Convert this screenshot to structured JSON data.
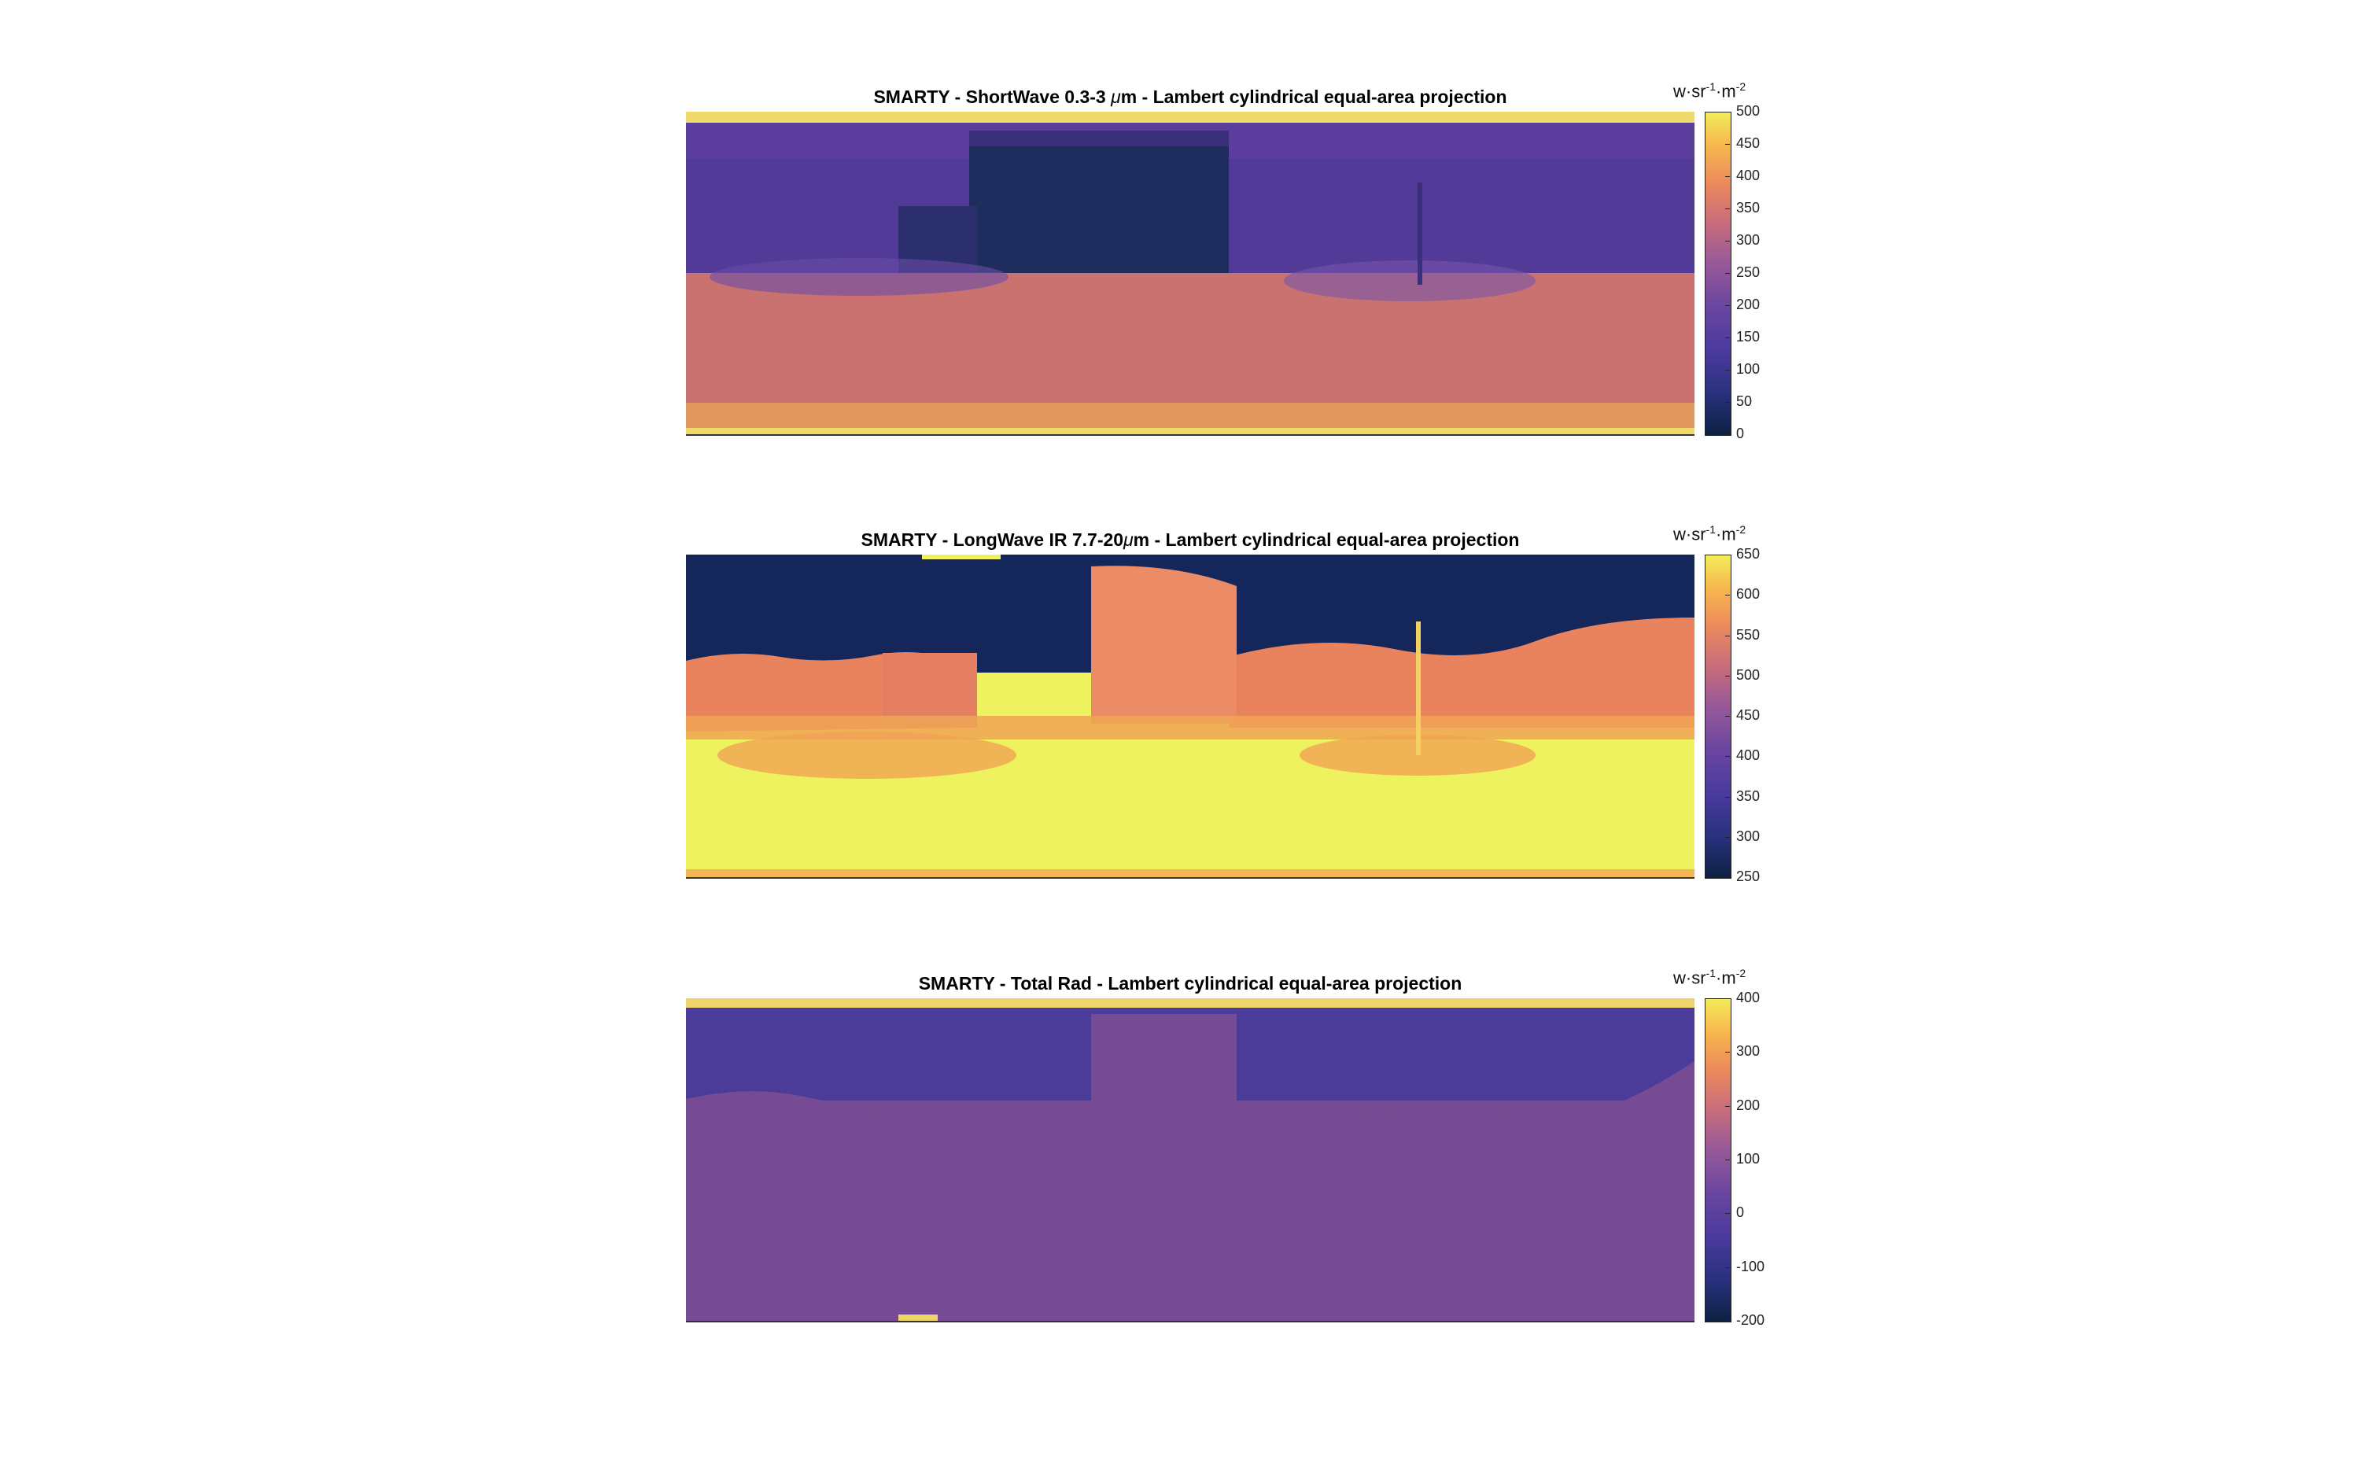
{
  "chart_data": [
    {
      "type": "heatmap",
      "title_pre": "SMARTY - ShortWave 0.3-3 ",
      "title_mu": "μ",
      "title_post": "m - Lambert cylindrical equal-area projection",
      "colorbar_ticks": [
        "500",
        "450",
        "400",
        "350",
        "300",
        "250",
        "200",
        "150",
        "100",
        "50",
        "0"
      ],
      "clim": [
        0,
        500
      ],
      "unit_base": "w·sr",
      "unit_exp1": "-1",
      "unit_mid": "·m",
      "unit_exp2": "-2",
      "colors": {
        "sky": "#5b3d9e",
        "sky_top": "#efd96a",
        "building": "#1f2d5e",
        "ground": "#c97270",
        "ground_bottom": "#e8a35c"
      }
    },
    {
      "type": "heatmap",
      "title_pre": "SMARTY - LongWave IR 7.7-20",
      "title_mu": "μ",
      "title_post": "m - Lambert cylindrical equal-area projection",
      "colorbar_ticks": [
        "650",
        "600",
        "550",
        "500",
        "450",
        "400",
        "350",
        "300",
        "250"
      ],
      "clim": [
        250,
        650
      ],
      "unit_base": "w·sr",
      "unit_exp1": "-1",
      "unit_mid": "·m",
      "unit_exp2": "-2",
      "colors": {
        "sky": "#15265a",
        "building": "#ec8c66",
        "trees": "#e8835e",
        "ground": "#eef25e",
        "ground_edge": "#f4b657"
      }
    },
    {
      "type": "heatmap",
      "title_pre": "SMARTY - Total Rad - Lambert cylindrical equal-area projection",
      "title_mu": "",
      "title_post": "",
      "colorbar_ticks": [
        "400",
        "300",
        "200",
        "100",
        "0",
        "-100",
        "-200"
      ],
      "clim": [
        -200,
        400
      ],
      "unit_base": "w·sr",
      "unit_exp1": "-1",
      "unit_mid": "·m",
      "unit_exp2": "-2",
      "colors": {
        "sky": "#4b3c9a",
        "sky_top": "#eed56a",
        "body": "#764b93"
      }
    }
  ]
}
